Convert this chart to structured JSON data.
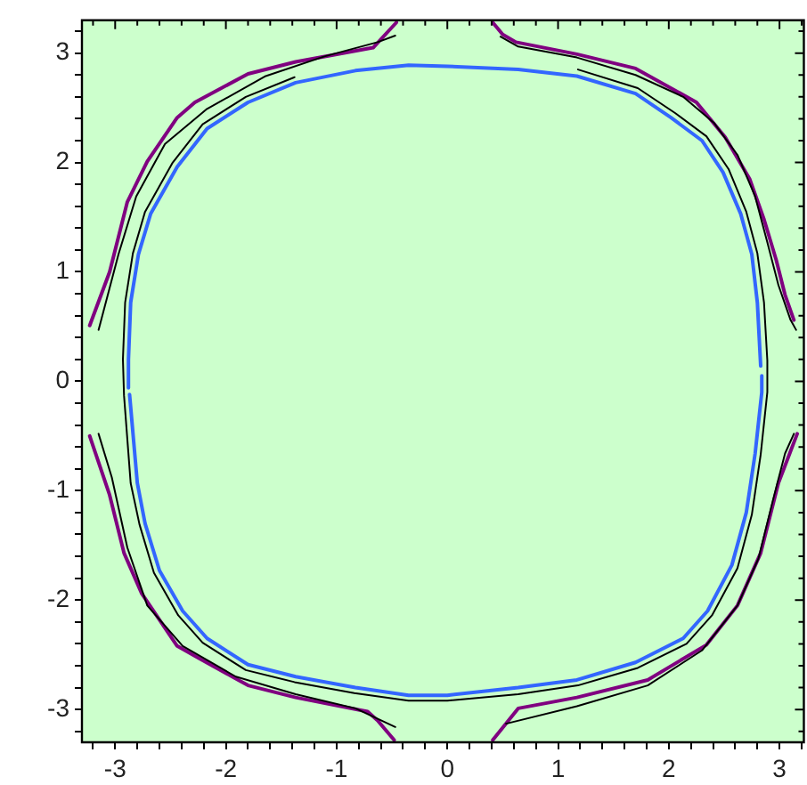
{
  "chart_data": {
    "type": "line",
    "xlim": [
      -3.3,
      3.22
    ],
    "ylim": [
      -3.3,
      3.3
    ],
    "xticks": [
      {
        "value": -3.2,
        "label": null
      },
      -3,
      {
        "value": -2.8,
        "label": null
      },
      {
        "value": -2.6,
        "label": null
      },
      {
        "value": -2.4,
        "label": null
      },
      {
        "value": -2.2,
        "label": null
      },
      -2,
      {
        "value": -1.8,
        "label": null
      },
      {
        "value": -1.6,
        "label": null
      },
      {
        "value": -1.4,
        "label": null
      },
      {
        "value": -1.2,
        "label": null
      },
      -1,
      {
        "value": -0.8,
        "label": null
      },
      {
        "value": -0.6,
        "label": null
      },
      {
        "value": -0.4,
        "label": null
      },
      {
        "value": -0.2,
        "label": null
      },
      0,
      {
        "value": 0.2,
        "label": null
      },
      {
        "value": 0.4,
        "label": null
      },
      {
        "value": 0.6,
        "label": null
      },
      {
        "value": 0.8,
        "label": null
      },
      1,
      {
        "value": 1.2,
        "label": null
      },
      {
        "value": 1.4,
        "label": null
      },
      {
        "value": 1.6,
        "label": null
      },
      {
        "value": 1.8,
        "label": null
      },
      2,
      {
        "value": 2.2,
        "label": null
      },
      {
        "value": 2.4,
        "label": null
      },
      {
        "value": 2.6,
        "label": null
      },
      {
        "value": 2.8,
        "label": null
      },
      3,
      {
        "value": 3.2,
        "label": null
      }
    ],
    "yticks": [
      {
        "value": -3.2,
        "label": null
      },
      -3,
      {
        "value": -2.8,
        "label": null
      },
      {
        "value": -2.6,
        "label": null
      },
      {
        "value": -2.4,
        "label": null
      },
      {
        "value": -2.2,
        "label": null
      },
      -2,
      {
        "value": -1.8,
        "label": null
      },
      {
        "value": -1.6,
        "label": null
      },
      {
        "value": -1.4,
        "label": null
      },
      {
        "value": -1.2,
        "label": null
      },
      -1,
      {
        "value": -0.8,
        "label": null
      },
      {
        "value": -0.6,
        "label": null
      },
      {
        "value": -0.4,
        "label": null
      },
      {
        "value": -0.2,
        "label": null
      },
      0,
      {
        "value": 0.2,
        "label": null
      },
      {
        "value": 0.4,
        "label": null
      },
      {
        "value": 0.6,
        "label": null
      },
      {
        "value": 0.8,
        "label": null
      },
      1,
      {
        "value": 1.2,
        "label": null
      },
      {
        "value": 1.4,
        "label": null
      },
      {
        "value": 1.6,
        "label": null
      },
      {
        "value": 1.8,
        "label": null
      },
      2,
      {
        "value": 2.2,
        "label": null
      },
      {
        "value": 2.4,
        "label": null
      },
      {
        "value": 2.6,
        "label": null
      },
      {
        "value": 2.8,
        "label": null
      },
      3,
      {
        "value": 3.2,
        "label": null
      }
    ],
    "series": [
      {
        "color": "#3366ff",
        "x": [
          -2.88,
          -2.88,
          -2.86,
          -2.79,
          -2.68,
          -2.44,
          -2.17,
          -1.8,
          -1.37,
          -0.83,
          -0.35,
          0,
          0.64,
          1.17,
          1.7,
          2.02,
          2.3,
          2.49,
          2.65,
          2.75,
          2.8,
          2.83,
          null,
          2.84,
          2.84,
          2.78,
          2.7,
          2.57,
          2.35,
          2.13,
          1.7,
          1.17,
          0.64,
          0,
          -0.35,
          -0.83,
          -1.37,
          -1.8,
          -2.17,
          -2.39,
          -2.6,
          -2.73,
          -2.8,
          -2.87
        ],
        "values": [
          -0.06,
          0.2,
          0.72,
          1.16,
          1.53,
          1.96,
          2.31,
          2.55,
          2.73,
          2.84,
          2.89,
          2.88,
          2.85,
          2.79,
          2.63,
          2.41,
          2.2,
          1.91,
          1.53,
          1.16,
          0.72,
          0.14,
          null,
          0.05,
          -0.1,
          -0.66,
          -1.2,
          -1.68,
          -2.1,
          -2.35,
          -2.57,
          -2.73,
          -2.8,
          -2.87,
          -2.87,
          -2.8,
          -2.7,
          -2.59,
          -2.35,
          -2.1,
          -1.73,
          -1.3,
          -0.93,
          -0.12
        ]
      },
      {
        "color": "#000000",
        "x": [
          1.18,
          1.72,
          2.06,
          2.34,
          2.54,
          2.7,
          2.8,
          2.86,
          2.89,
          2.89,
          2.83,
          2.75,
          2.62,
          2.39,
          2.16,
          1.72,
          1.18,
          0.64,
          0,
          -0.35,
          -0.84,
          -1.38,
          -1.82,
          -2.21,
          -2.43,
          -2.65,
          -2.78,
          -2.86,
          -2.92,
          -2.93,
          -2.91,
          -2.84,
          -2.73,
          -2.48,
          -2.21,
          -1.82,
          -1.38
        ],
        "values": [
          2.85,
          2.68,
          2.45,
          2.24,
          1.94,
          1.55,
          1.17,
          0.72,
          0.19,
          -0.1,
          -0.67,
          -1.22,
          -1.71,
          -2.14,
          -2.4,
          -2.62,
          -2.78,
          -2.86,
          -2.92,
          -2.92,
          -2.85,
          -2.75,
          -2.64,
          -2.39,
          -2.14,
          -1.75,
          -1.31,
          -0.93,
          -0.13,
          0.2,
          0.72,
          1.17,
          1.55,
          2.0,
          2.35,
          2.6,
          2.78
        ]
      },
      {
        "color": "#000000",
        "x": [
          -3.15,
          -2.97,
          -2.81,
          -2.55,
          -2.17,
          -1.64,
          -1.11,
          -0.63,
          -0.47
        ],
        "values": [
          0.47,
          1.16,
          1.69,
          2.17,
          2.49,
          2.79,
          2.97,
          3.1,
          3.16
        ]
      },
      {
        "color": "#000000",
        "x": [
          0.48,
          0.64,
          1.17,
          1.7,
          2.13,
          2.41,
          2.62,
          2.78,
          2.89,
          2.99,
          3.1,
          3.15
        ],
        "values": [
          3.15,
          3.06,
          2.96,
          2.8,
          2.6,
          2.36,
          2.07,
          1.69,
          1.27,
          0.88,
          0.56,
          0.47
        ]
      },
      {
        "color": "#000000",
        "x": [
          -3.15,
          -3.03,
          -2.89,
          -2.71,
          -2.39,
          -1.91,
          -1.37,
          -0.83,
          -0.47
        ],
        "values": [
          -0.48,
          -0.88,
          -1.52,
          -2.05,
          -2.42,
          -2.7,
          -2.86,
          -2.99,
          -3.16
        ]
      },
      {
        "color": "#000000",
        "x": [
          0.53,
          1.17,
          1.81,
          2.3,
          2.62,
          2.81,
          2.94,
          3.05,
          3.13
        ],
        "values": [
          -3.13,
          -2.97,
          -2.78,
          -2.46,
          -2.05,
          -1.62,
          -1.09,
          -0.66,
          -0.48
        ]
      },
      {
        "color": "#800080",
        "x": [
          -3.23,
          -3.05,
          -2.89,
          -2.71,
          -2.44,
          -2.28,
          -1.8,
          -1.37,
          -0.67,
          -0.46
        ],
        "values": [
          0.51,
          1.0,
          1.64,
          2.01,
          2.41,
          2.55,
          2.81,
          2.92,
          3.05,
          3.28
        ]
      },
      {
        "color": "#800080",
        "x": [
          0.41,
          0.5,
          0.62,
          1.17,
          1.7,
          2.25,
          2.51,
          2.73,
          2.86,
          2.97,
          3.05,
          3.13
        ],
        "values": [
          3.28,
          3.17,
          3.1,
          2.99,
          2.86,
          2.55,
          2.23,
          1.85,
          1.48,
          1.11,
          0.79,
          0.56
        ]
      },
      {
        "color": "#800080",
        "x": [
          -3.23,
          -3.05,
          -2.92,
          -2.76,
          -2.44,
          -2.23,
          -1.8,
          -1.37,
          -0.72,
          -0.63,
          -0.48
        ],
        "values": [
          -0.5,
          -1.04,
          -1.57,
          -1.94,
          -2.42,
          -2.54,
          -2.78,
          -2.89,
          -3.02,
          -3.1,
          -3.28
        ]
      },
      {
        "color": "#800080",
        "x": [
          0.41,
          0.64,
          1.17,
          1.81,
          2.34,
          2.62,
          2.83,
          2.99,
          3.16
        ],
        "values": [
          -3.28,
          -2.99,
          -2.89,
          -2.73,
          -2.41,
          -2.05,
          -1.57,
          -0.93,
          -0.48
        ]
      }
    ]
  }
}
